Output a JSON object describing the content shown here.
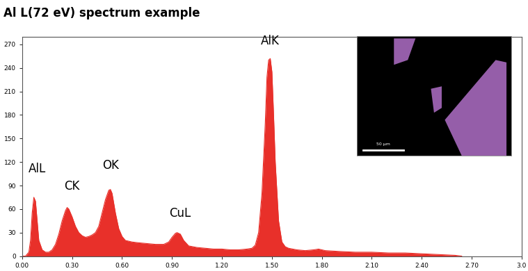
{
  "chart_data": {
    "type": "area",
    "title": "Al L(72 eV) spectrum example",
    "color": "#e8302a",
    "grid": false,
    "x": [
      0.0,
      0.02,
      0.04,
      0.05,
      0.06,
      0.07,
      0.08,
      0.09,
      0.1,
      0.12,
      0.14,
      0.16,
      0.18,
      0.2,
      0.22,
      0.24,
      0.26,
      0.27,
      0.28,
      0.3,
      0.32,
      0.34,
      0.36,
      0.38,
      0.4,
      0.42,
      0.44,
      0.46,
      0.48,
      0.5,
      0.52,
      0.53,
      0.54,
      0.56,
      0.58,
      0.6,
      0.62,
      0.66,
      0.7,
      0.75,
      0.8,
      0.85,
      0.88,
      0.9,
      0.92,
      0.93,
      0.95,
      0.97,
      1.0,
      1.05,
      1.1,
      1.15,
      1.2,
      1.25,
      1.3,
      1.35,
      1.38,
      1.4,
      1.42,
      1.44,
      1.46,
      1.47,
      1.48,
      1.49,
      1.5,
      1.51,
      1.52,
      1.54,
      1.56,
      1.58,
      1.6,
      1.65,
      1.7,
      1.75,
      1.78,
      1.82,
      1.9,
      2.0,
      2.1,
      2.2,
      2.3,
      2.4,
      2.5,
      2.6,
      2.64
    ],
    "values": [
      0,
      0,
      5,
      20,
      55,
      75,
      70,
      45,
      20,
      8,
      5,
      5,
      8,
      15,
      28,
      45,
      58,
      62,
      60,
      50,
      38,
      30,
      26,
      24,
      25,
      27,
      30,
      38,
      55,
      72,
      84,
      85,
      80,
      55,
      35,
      25,
      20,
      18,
      17,
      16,
      15,
      15,
      18,
      24,
      29,
      30,
      28,
      20,
      13,
      11,
      10,
      9,
      9,
      8,
      8,
      9,
      10,
      14,
      30,
      80,
      170,
      228,
      250,
      252,
      235,
      180,
      120,
      45,
      18,
      12,
      10,
      8,
      7,
      8,
      9,
      7,
      6,
      5,
      5,
      4,
      4,
      3,
      2,
      1,
      0
    ],
    "xlim": [
      0,
      3.0
    ],
    "xticks": [
      {
        "value": 0,
        "label": "0.00"
      },
      {
        "value": 0.3,
        "label": "0.30"
      },
      {
        "value": 0.6,
        "label": "0.60"
      },
      {
        "value": 0.9,
        "label": "0.90"
      },
      {
        "value": 1.2,
        "label": "1.20"
      },
      {
        "value": 1.5,
        "label": "1.50"
      },
      {
        "value": 1.8,
        "label": "1.80"
      },
      {
        "value": 2.1,
        "label": "2.10"
      },
      {
        "value": 2.4,
        "label": "2.40"
      },
      {
        "value": 2.7,
        "label": "2.70"
      },
      {
        "value": 3.0,
        "label": "3.0"
      }
    ],
    "ylim": [
      0,
      280
    ],
    "yticks": [
      0,
      30,
      60,
      90,
      120,
      150,
      180,
      210,
      240,
      270
    ],
    "annotations": [
      {
        "text": "AlL",
        "x": 0.09,
        "y": 103
      },
      {
        "text": "CK",
        "x": 0.3,
        "y": 81
      },
      {
        "text": "OK",
        "x": 0.53,
        "y": 108
      },
      {
        "text": "CuL",
        "x": 0.95,
        "y": 47
      },
      {
        "text": "AlK",
        "x": 1.49,
        "y": 266
      }
    ],
    "inset": {
      "scale_bar": "50 µm"
    }
  }
}
